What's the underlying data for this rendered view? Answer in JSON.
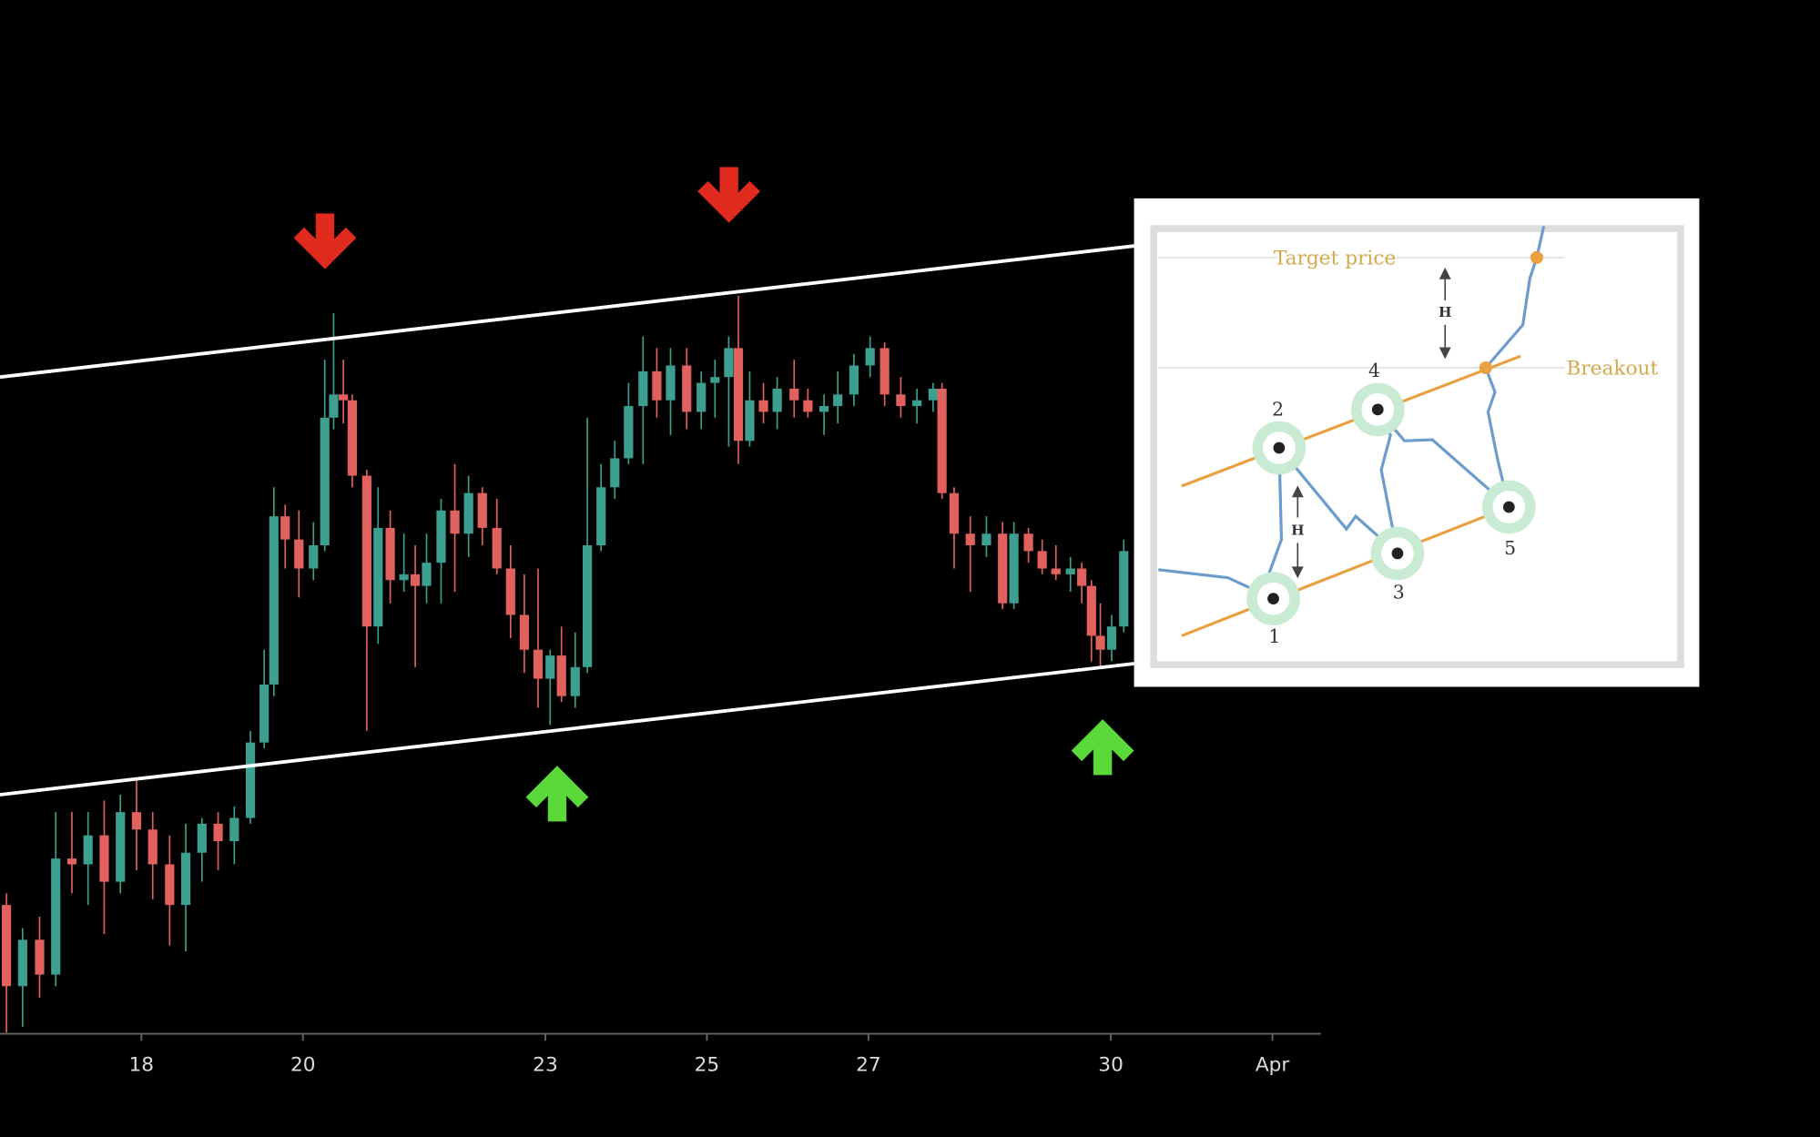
{
  "chart_data": {
    "type": "candlestick",
    "x": [
      16.33,
      16.53,
      16.74,
      16.94,
      17.14,
      17.34,
      17.54,
      17.74,
      17.94,
      18.14,
      18.35,
      18.55,
      18.75,
      18.95,
      19.15,
      19.35,
      19.52,
      19.64,
      19.78,
      19.95,
      20.13,
      20.27,
      20.38,
      20.5,
      20.61,
      20.79,
      20.93,
      21.08,
      21.25,
      21.39,
      21.53,
      21.71,
      21.88,
      22.05,
      22.22,
      22.4,
      22.57,
      22.74,
      22.91,
      23.06,
      23.2,
      23.37,
      23.52,
      23.69,
      23.86,
      24.03,
      24.21,
      24.38,
      24.55,
      24.75,
      24.93,
      25.1,
      25.27,
      25.39,
      25.53,
      25.7,
      25.87,
      26.08,
      26.25,
      26.45,
      26.62,
      26.82,
      27.02,
      27.2,
      27.4,
      27.6,
      27.8,
      27.91,
      28.06,
      28.26,
      28.46,
      28.66,
      28.8,
      28.98,
      29.15,
      29.32,
      29.5,
      29.64,
      29.76,
      29.87,
      30.01,
      30.16
    ],
    "open": [
      110,
      40,
      80,
      50,
      150,
      145,
      170,
      130,
      190,
      175,
      145,
      110,
      155,
      180,
      165,
      185,
      250,
      300,
      445,
      425,
      400,
      420,
      530,
      550,
      545,
      480,
      350,
      435,
      390,
      395,
      385,
      405,
      450,
      430,
      465,
      435,
      400,
      360,
      330,
      305,
      325,
      290,
      315,
      420,
      470,
      495,
      540,
      570,
      545,
      575,
      535,
      560,
      565,
      590,
      510,
      545,
      535,
      555,
      545,
      535,
      540,
      550,
      575,
      590,
      550,
      540,
      545,
      555,
      465,
      430,
      420,
      430,
      370,
      430,
      415,
      400,
      395,
      400,
      385,
      342,
      330,
      350
    ],
    "high": [
      120,
      90,
      100,
      190,
      190,
      190,
      200,
      205,
      220,
      190,
      170,
      180,
      185,
      190,
      195,
      260,
      330,
      470,
      455,
      450,
      440,
      580,
      620,
      580,
      550,
      485,
      470,
      450,
      430,
      420,
      430,
      460,
      490,
      480,
      470,
      460,
      420,
      395,
      400,
      330,
      350,
      345,
      530,
      490,
      510,
      560,
      600,
      590,
      590,
      590,
      570,
      580,
      600,
      635,
      570,
      560,
      565,
      580,
      555,
      550,
      570,
      585,
      600,
      595,
      565,
      555,
      560,
      560,
      470,
      445,
      445,
      440,
      440,
      435,
      425,
      420,
      410,
      405,
      390,
      370,
      360,
      425
    ],
    "low": [
      0,
      5,
      30,
      40,
      120,
      110,
      85,
      120,
      140,
      115,
      75,
      70,
      130,
      140,
      145,
      180,
      245,
      290,
      400,
      375,
      390,
      415,
      520,
      525,
      470,
      260,
      335,
      370,
      380,
      315,
      370,
      370,
      380,
      410,
      420,
      395,
      340,
      310,
      280,
      265,
      285,
      280,
      310,
      415,
      460,
      490,
      490,
      530,
      515,
      520,
      520,
      530,
      505,
      490,
      505,
      525,
      520,
      530,
      530,
      515,
      525,
      540,
      565,
      540,
      530,
      525,
      535,
      460,
      400,
      380,
      410,
      365,
      365,
      405,
      395,
      390,
      380,
      370,
      320,
      315,
      320,
      345
    ],
    "close": [
      40,
      80,
      50,
      150,
      145,
      170,
      130,
      190,
      175,
      145,
      110,
      155,
      180,
      165,
      185,
      250,
      300,
      445,
      425,
      400,
      420,
      530,
      550,
      545,
      480,
      350,
      435,
      390,
      395,
      385,
      405,
      450,
      430,
      465,
      435,
      400,
      360,
      330,
      305,
      325,
      290,
      315,
      420,
      470,
      495,
      540,
      570,
      545,
      575,
      535,
      560,
      565,
      590,
      510,
      545,
      535,
      555,
      545,
      535,
      540,
      550,
      575,
      590,
      550,
      540,
      545,
      555,
      465,
      430,
      420,
      430,
      370,
      430,
      415,
      400,
      395,
      400,
      385,
      342,
      330,
      350,
      415
    ],
    "up_color": "#3d9f8f",
    "down_color": "#e0615d",
    "xlim": [
      16.25,
      32.6
    ],
    "ylim": [
      0,
      890
    ],
    "xticks": [
      18,
      20,
      23,
      25,
      27,
      30,
      {
        "value": 32,
        "label": "Apr"
      }
    ]
  },
  "inset": {
    "target_label": "Target price",
    "breakout_label": "Breakout",
    "height_labels": [
      "H",
      "H"
    ],
    "point_labels": [
      "1",
      "2",
      "3",
      "4",
      "5"
    ]
  }
}
